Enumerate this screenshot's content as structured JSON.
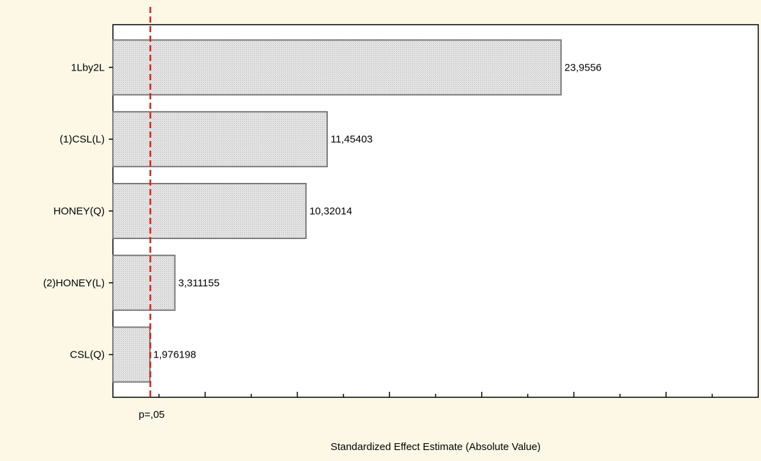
{
  "chart_data": {
    "type": "bar",
    "orientation": "horizontal",
    "categories": [
      "1Lby2L",
      "(1)CSL(L)",
      "HONEY(Q)",
      "(2)HONEY(L)",
      "CSL(Q)"
    ],
    "values": [
      23.9556,
      11.45403,
      10.32014,
      3.311155,
      1.976198
    ],
    "value_labels": [
      "23,9556",
      "11,45403",
      "10,32014",
      "3,311155",
      "1,976198"
    ],
    "xlabel": "Standardized Effect Estimate (Absolute Value)",
    "xlim": [
      0,
      34.5
    ],
    "reference_line": {
      "value": 2.0,
      "label": "p=,05",
      "color": "#e0201b"
    },
    "grid": false,
    "legend": "none",
    "colors": {
      "background": "#fdf8e6",
      "plot_area": "#ffffff",
      "bar_fill": "#e3e3e3",
      "bar_edge": "#7a7a7a"
    }
  }
}
